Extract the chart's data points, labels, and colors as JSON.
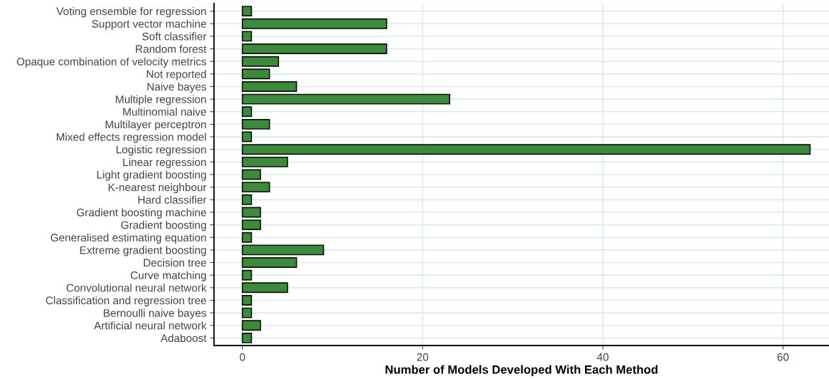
{
  "chart_data": {
    "type": "bar",
    "orientation": "horizontal",
    "xlabel": "Number of Models Developed With Each Method",
    "categories": [
      "Voting ensemble for regression",
      "Support vector machine",
      "Soft classifier",
      "Random forest",
      "Opaque combination of velocity metrics",
      "Not reported",
      "Naive bayes",
      "Multiple regression",
      "Multinomial naive",
      "Multilayer perceptron",
      "Mixed effects regression model",
      "Logistic regression",
      "Linear regression",
      "Light gradient boosting",
      "K-nearest neighbour",
      "Hard classifier",
      "Gradient boosting machine",
      "Gradient boosting",
      "Generalised estimating equation",
      "Extreme gradient boosting",
      "Decision tree",
      "Curve matching",
      "Convolutional neural network",
      "Classification and regression tree",
      "Bernoulli naive bayes",
      "Artificial neural network",
      "Adaboost"
    ],
    "values": [
      1,
      16,
      1,
      16,
      4,
      3,
      6,
      23,
      1,
      3,
      1,
      63,
      5,
      2,
      3,
      1,
      2,
      2,
      1,
      9,
      6,
      1,
      5,
      1,
      1,
      2,
      1
    ],
    "color": "#3a8c3a",
    "xlim": [
      -3.15,
      65.1
    ],
    "xticks": [
      0,
      20,
      40,
      60
    ],
    "grid": true
  }
}
